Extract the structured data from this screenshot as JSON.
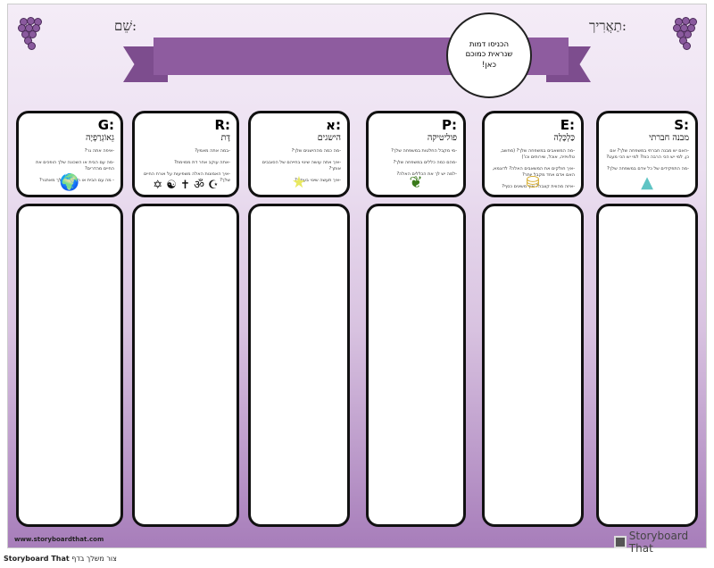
{
  "header": {
    "name_label": "שֵׁם:",
    "date_label": "תַאֲרִיך:",
    "circle_text": "הכניסו דמות שנראית כמוכם כאן!"
  },
  "cards": [
    {
      "letter": ":G",
      "title": "גֵאוֹגְרַפְיָה",
      "questions": [
        "-איפה אתה גר?",
        "-מה עם הבית או השכונה שלך הופכים את החיים מהדרים?",
        "- מה עם הבית או השכונה שלך מאתגר?"
      ],
      "icon": "globe-icon",
      "glyph": "🌍"
    },
    {
      "letter": ":R",
      "title": "דָּת",
      "questions": [
        "-במה אתה מאמין?",
        "-אתה עוקב אחר דת מסוימת?",
        "-איך האמונות האלה משפיעות על אורח החיים שלך?"
      ],
      "icon": "religious-symbols-icon",
      "glyph": "✡ ☯ ✝ ॐ ☪"
    },
    {
      "letter": ":א",
      "title": "הישגים",
      "questions": [
        "-מה כמה מההישגים שלך?",
        "-איך אתה עושה שינוי בחייהם של הסובבים אותך?",
        "-איך תעשה שינוי בעתיד?"
      ],
      "icon": "star-icon",
      "glyph": "★"
    },
    {
      "letter": ":P",
      "title": "פוליטיקה",
      "questions": [
        "-מי מקבל החלטות במשפחה שלך?",
        "-מהם כמה כללים במשפחה שלך?",
        "-למה יש לך את הכללים האלה?"
      ],
      "icon": "leaves-icon",
      "glyph": "❦"
    },
    {
      "letter": ":E",
      "title": "כַּלְכָּלָה",
      "questions": [
        "-מה המשאבים במשפחה שלך? (מחשב, טלוויזיה, אוכל, שירותים וכו')",
        "-איך חולקים את המשאבים האלה? לדוגמא, האם אדם אחד מקבל יותר?",
        "-איזה מהווית קצבה? איך משיגים כסף?"
      ],
      "icon": "gold-coins-icon",
      "glyph": "⛁"
    },
    {
      "letter": ":S",
      "title": "מבנה חברתי",
      "questions": [
        "-האם יש מבנה חברתי במשפחה שלך? אם כן, למי יש הכי הרבה כוח? למי יש הכי מעט?",
        "-מה התפקידים של כל אדם במשפחה שלך?"
      ],
      "icon": "pyramid-icon",
      "glyph": "▲"
    }
  ],
  "footer": {
    "url": "www.storyboardthat.com",
    "logo": "Storyboard That",
    "caption_brand": "Storyboard That",
    "caption_text": "צור משלך בדף"
  },
  "colors": {
    "banner": "#8e5c9f",
    "bottom": "#a77dba"
  }
}
